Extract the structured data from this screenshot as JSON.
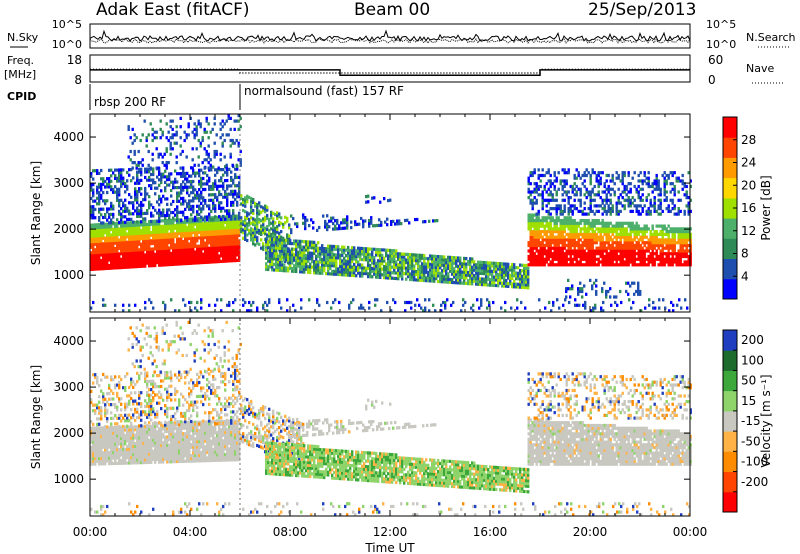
{
  "header": {
    "station": "Adak East (fitACF)",
    "beam": "Beam 00",
    "date": "25/Sep/2013"
  },
  "colors": {
    "power_scale": [
      "#0000ff",
      "#1f4fae",
      "#2e8b57",
      "#4caf6a",
      "#a0e000",
      "#ffd700",
      "#ff9a00",
      "#ff4500",
      "#ff0000"
    ],
    "velocity_scale": [
      "#1f3fc0",
      "#1e6b2e",
      "#3ca83c",
      "#8fd46a",
      "#c8c8c0",
      "#ffb347",
      "#ff8c00",
      "#ff4500",
      "#ff0000"
    ]
  },
  "chart_data": [
    {
      "type": "line",
      "panel": "noise",
      "left_label": "N.Sky",
      "right_label": "N.Search",
      "left_ticks": [
        "10^5",
        "10^0"
      ],
      "right_ticks": [
        "10^5",
        "10^0"
      ],
      "xlim": [
        "00:00",
        "24:00"
      ]
    },
    {
      "type": "line",
      "panel": "frequency",
      "left_label": "Freq.",
      "left_unit": "[MHz]",
      "right_label": "Nave",
      "left_ticks": [
        18,
        8
      ],
      "right_ticks": [
        60,
        0
      ],
      "series": [
        {
          "name": "Freq.",
          "x": [
            0,
            6,
            10,
            18,
            24
          ],
          "y": [
            12.5,
            12.5,
            10.5,
            12.5,
            12.5
          ]
        },
        {
          "name": "Nave",
          "x": [
            0,
            6,
            10,
            18,
            24
          ],
          "y": [
            28,
            20,
            20,
            28,
            28
          ]
        }
      ]
    },
    {
      "type": "table",
      "panel": "cpid",
      "label": "CPID",
      "segments": [
        {
          "start": "00:00",
          "end": "06:00",
          "text": "rbsp 200 RF"
        },
        {
          "start": "06:00",
          "end": "24:00",
          "text": "normalsound (fast) 157 RF"
        }
      ]
    },
    {
      "type": "heatmap",
      "panel": "power",
      "ylabel": "Slant Range [km]",
      "ylim": [
        200,
        4500
      ],
      "yticks": [
        1000,
        2000,
        3000,
        4000
      ],
      "colorbar_label": "Power [dB]",
      "colorbar_ticks": [
        4,
        8,
        12,
        16,
        20,
        24,
        28
      ],
      "colorbar_range": [
        0,
        32
      ]
    },
    {
      "type": "heatmap",
      "panel": "velocity",
      "ylabel": "Slant Range [km]",
      "ylim": [
        200,
        4500
      ],
      "yticks": [
        1000,
        2000,
        3000,
        4000
      ],
      "colorbar_label": "Velocity [m s⁻¹]",
      "colorbar_ticks": [
        "200",
        "100",
        "50",
        "15",
        "-15",
        "-50",
        "-100",
        "-200"
      ],
      "xlabel": "Time UT",
      "xticks": [
        "00:00",
        "04:00",
        "08:00",
        "12:00",
        "16:00",
        "20:00",
        "00:00"
      ]
    }
  ]
}
